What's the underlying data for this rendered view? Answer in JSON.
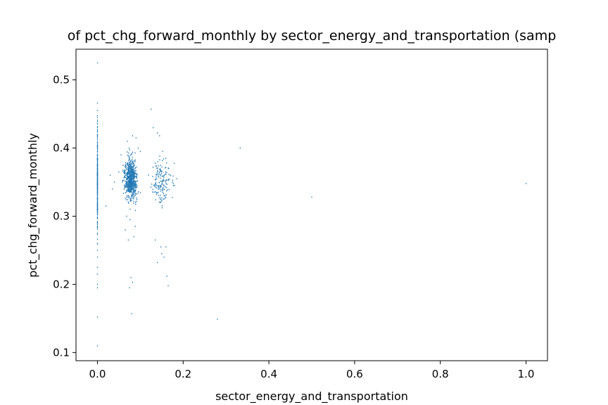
{
  "chart_data": {
    "type": "scatter",
    "title": "of pct_chg_forward_monthly by sector_energy_and_transportation (samp",
    "xlabel": "sector_energy_and_transportation",
    "ylabel": "pct_chg_forward_monthly",
    "xlim": [
      -0.05,
      1.05
    ],
    "ylim": [
      0.088,
      0.545
    ],
    "xticks": [
      0.0,
      0.2,
      0.4,
      0.6,
      0.8,
      1.0
    ],
    "xtick_labels": [
      "0.0",
      "0.2",
      "0.4",
      "0.6",
      "0.8",
      "1.0"
    ],
    "yticks": [
      0.1,
      0.2,
      0.3,
      0.4,
      0.5
    ],
    "ytick_labels": [
      "0.1",
      "0.2",
      "0.3",
      "0.4",
      "0.5"
    ],
    "grid": false,
    "marker_color": "#1f77b4",
    "series": [
      {
        "clusters": [
          {
            "x_center": 0.0,
            "x_spread": 0.0,
            "y_center": 0.35,
            "y_spread": 0.06,
            "count": 260
          },
          {
            "x_center": 0.078,
            "x_spread": 0.012,
            "y_center": 0.355,
            "y_spread": 0.025,
            "count": 650
          },
          {
            "x_center": 0.15,
            "x_spread": 0.02,
            "y_center": 0.35,
            "y_spread": 0.03,
            "count": 160
          }
        ],
        "x": [
          0.0,
          0.0,
          0.0,
          0.0,
          0.0,
          0.0,
          0.0,
          0.0,
          0.0,
          0.0,
          0.0,
          0.0,
          0.0,
          0.0,
          0.0,
          0.08,
          0.078,
          0.082,
          0.075,
          0.072,
          0.085,
          0.088,
          0.065,
          0.07,
          0.095,
          0.09,
          0.082,
          0.076,
          0.068,
          0.1,
          0.125,
          0.13,
          0.14,
          0.145,
          0.148,
          0.15,
          0.155,
          0.16,
          0.162,
          0.165,
          0.14,
          0.135,
          0.17,
          0.175,
          0.18,
          0.185,
          0.02,
          0.03,
          0.035,
          0.04,
          0.05,
          0.055,
          0.28,
          0.333,
          0.5,
          1.0
        ],
        "y": [
          0.525,
          0.466,
          0.455,
          0.445,
          0.43,
          0.42,
          0.26,
          0.25,
          0.24,
          0.225,
          0.215,
          0.2,
          0.195,
          0.152,
          0.11,
          0.157,
          0.21,
          0.203,
          0.195,
          0.265,
          0.27,
          0.285,
          0.28,
          0.41,
          0.4,
          0.415,
          0.418,
          0.295,
          0.3,
          0.395,
          0.457,
          0.43,
          0.422,
          0.418,
          0.255,
          0.245,
          0.24,
          0.255,
          0.212,
          0.198,
          0.232,
          0.265,
          0.36,
          0.35,
          0.345,
          0.355,
          0.315,
          0.36,
          0.34,
          0.35,
          0.365,
          0.39,
          0.149,
          0.4,
          0.328,
          0.348
        ]
      }
    ]
  }
}
